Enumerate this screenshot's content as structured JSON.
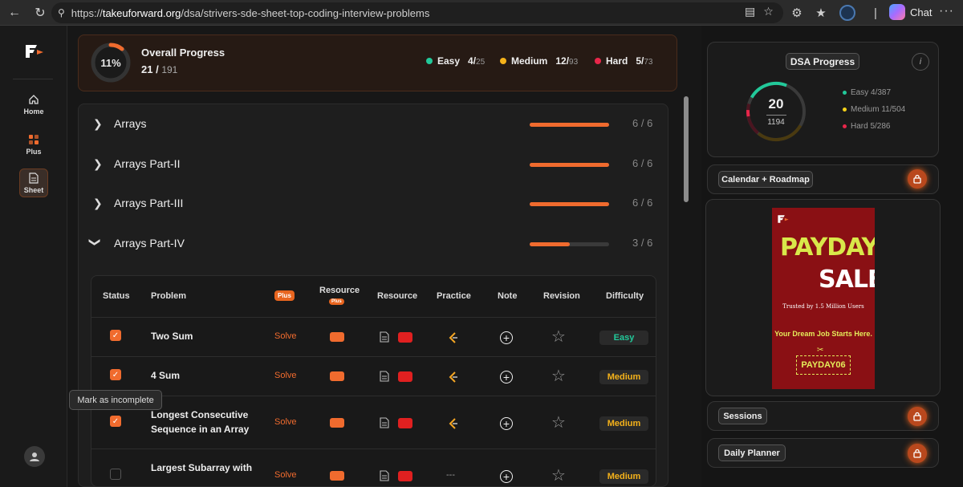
{
  "browser": {
    "url_prefix": "https://",
    "url_host": "takeuforward.org",
    "url_path": "/dsa/strivers-sde-sheet-top-coding-interview-problems",
    "chat_label": "Chat"
  },
  "sidebar": {
    "items": [
      {
        "label": "Home",
        "icon": "home-icon"
      },
      {
        "label": "Plus",
        "icon": "plus-grid-icon"
      },
      {
        "label": "Sheet",
        "icon": "sheet-icon",
        "active": true
      }
    ]
  },
  "overall": {
    "percent_label": "11%",
    "percent": 11,
    "title": "Overall Progress",
    "done": "21 /",
    "total": "191",
    "easy": {
      "label": "Easy",
      "done": "4/",
      "total": "25",
      "color": "#22c99a"
    },
    "medium": {
      "label": "Medium",
      "done": "12/",
      "total": "93",
      "color": "#f5b21a"
    },
    "hard": {
      "label": "Hard",
      "done": "5/",
      "total": "73",
      "color": "#e8264a"
    }
  },
  "topics": [
    {
      "name": "Arrays",
      "count": "6 / 6",
      "progress": 1.0,
      "expanded": false
    },
    {
      "name": "Arrays Part-II",
      "count": "6 / 6",
      "progress": 1.0,
      "expanded": false
    },
    {
      "name": "Arrays Part-III",
      "count": "6 / 6",
      "progress": 1.0,
      "expanded": false
    },
    {
      "name": "Arrays Part-IV",
      "count": "3 / 6",
      "progress": 0.5,
      "expanded": true
    }
  ],
  "table": {
    "headers": {
      "status": "Status",
      "problem": "Problem",
      "plus": "Plus",
      "resource_plus": "Resource",
      "resource_plus_badge": "Plus",
      "resource": "Resource",
      "practice": "Practice",
      "note": "Note",
      "revision": "Revision",
      "difficulty": "Difficulty"
    },
    "rows": [
      {
        "name": "Two Sum",
        "solve": "Solve",
        "difficulty": "Easy",
        "checked": true
      },
      {
        "name": "4 Sum",
        "solve": "Solve",
        "difficulty": "Medium",
        "checked": true
      },
      {
        "name": "Longest Consecutive Sequence in an Array",
        "solve": "Solve",
        "difficulty": "Medium",
        "checked": true
      },
      {
        "name": "Largest Subarray with",
        "solve": "Solve",
        "difficulty": "Medium",
        "checked": false,
        "practice": "---"
      }
    ]
  },
  "tooltip": "Mark as incomplete",
  "dsa_progress": {
    "title": "DSA Progress",
    "info": "i",
    "solved": "20",
    "total": "1194",
    "easy": "Easy 4/387",
    "medium": "Medium 11/504",
    "hard": "Hard 5/286"
  },
  "calendar": {
    "label": "Calendar + Roadmap"
  },
  "promo": {
    "line1": "PAYDAY",
    "line2": "SALE",
    "trusted": "Trusted by 1.5 Million Users",
    "tagline": "Your Dream Job Starts Here.",
    "code": "PAYDAY06"
  },
  "sessions": {
    "label": "Sessions"
  },
  "daily_planner": {
    "label": "Daily Planner"
  },
  "colors": {
    "accent": "#f06b2e",
    "easy": "#22c99a",
    "medium": "#f5b21a",
    "hard": "#e8264a"
  }
}
